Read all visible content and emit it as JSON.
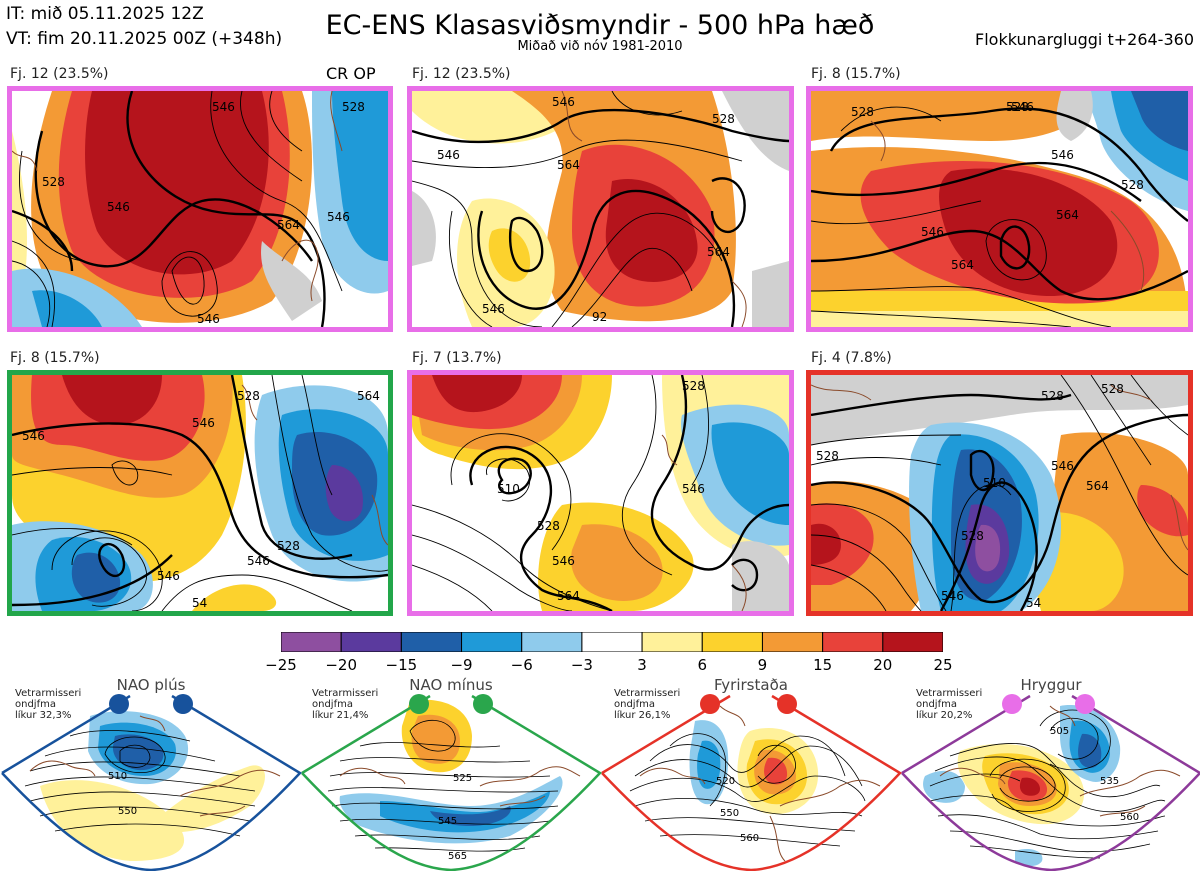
{
  "header": {
    "initial_time": "IT: mið 05.11.2025 12Z",
    "valid_time": "VT: fim 20.11.2025 00Z  (+348h)",
    "title": "EC-ENS Klasasviðsmyndir - 500 hPa hæð",
    "subtitle": "Miðað við nóv 1981-2010",
    "window": "Flokkunargluggi t+264-360"
  },
  "panels": [
    {
      "label": "Fj. 12 (23.5%)",
      "border": "#e86ee8",
      "extra": "CR OP",
      "contours": [
        "546",
        "528",
        "564",
        "546",
        "546",
        "528",
        "546"
      ]
    },
    {
      "label": "Fj. 12 (23.5%)",
      "border": "#e86ee8",
      "contours": [
        "546",
        "528",
        "546",
        "564",
        "546",
        "564",
        "92"
      ]
    },
    {
      "label": "Fj. 8 (15.7%)",
      "border": "#e86ee8",
      "contours": [
        "528",
        "546",
        "528",
        "546",
        "564",
        "564",
        "546",
        "528"
      ]
    },
    {
      "label": "Fj. 8 (15.7%)",
      "border": "#22a64a",
      "contours": [
        "546",
        "546",
        "528",
        "546",
        "546",
        "528",
        "564",
        "54"
      ]
    },
    {
      "label": "Fj. 7 (13.7%)",
      "border": "#e86ee8",
      "contours": [
        "528",
        "510",
        "546",
        "528",
        "546",
        "564"
      ]
    },
    {
      "label": "Fj. 4 (7.8%)",
      "border": "#e53228",
      "contours": [
        "528",
        "528",
        "546",
        "564",
        "510",
        "528",
        "546",
        "54",
        "528"
      ]
    }
  ],
  "colorbar": {
    "colors": [
      "#8e4fa0",
      "#5b3a9e",
      "#1f5fa8",
      "#1f9ad8",
      "#8fcbec",
      "#ffffff",
      "#fff19a",
      "#fcd22d",
      "#f39a35",
      "#e8423a",
      "#b5141c"
    ],
    "ticks": [
      "−25",
      "−20",
      "−15",
      "−9",
      "−6",
      "−3",
      "3",
      "6",
      "9",
      "15",
      "20",
      "25"
    ]
  },
  "regimes": [
    {
      "title": "NAO plús",
      "note": "Vetrarmisseri\nondjfma\nlíkur 32,3%",
      "frame": "#17529c",
      "dot": "#17529c",
      "labels": [
        "510",
        "550"
      ]
    },
    {
      "title": "NAO mínus",
      "note": "Vetrarmisseri\nondjfma\nlíkur 21,4%",
      "frame": "#2aa64c",
      "dot": "#2aa64c",
      "labels": [
        "525",
        "545",
        "565"
      ]
    },
    {
      "title": "Fyrirstaða",
      "note": "Vetrarmisseri\nondjfma\nlíkur 26,1%",
      "frame": "#e53228",
      "dot": "#e53228",
      "labels": [
        "520",
        "550",
        "560"
      ]
    },
    {
      "title": "Hryggur",
      "note": "Vetrarmisseri\nondjfma\nlíkur 20,2%",
      "frame": "#8d3a9a",
      "dot": "#e86ee8",
      "labels": [
        "505",
        "535",
        "560"
      ]
    }
  ],
  "colors": {
    "coast": "#8a4a2a",
    "grey": "#d0d0d0"
  }
}
